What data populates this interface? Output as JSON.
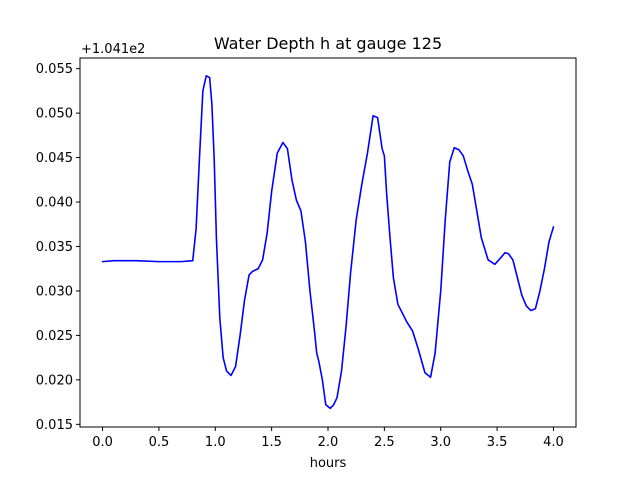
{
  "chart_data": {
    "type": "line",
    "title": "Water Depth h at gauge 125",
    "xlabel": "hours",
    "ylabel": "",
    "y_offset_label": "+1.041e2",
    "xlim": [
      -0.2,
      4.2
    ],
    "ylim": [
      0.0147,
      0.0562
    ],
    "x_ticks": [
      0.0,
      0.5,
      1.0,
      1.5,
      2.0,
      2.5,
      3.0,
      3.5,
      4.0
    ],
    "x_tick_labels": [
      "0.0",
      "0.5",
      "1.0",
      "1.5",
      "2.0",
      "2.5",
      "3.0",
      "3.5",
      "4.0"
    ],
    "y_ticks": [
      0.015,
      0.02,
      0.025,
      0.03,
      0.035,
      0.04,
      0.045,
      0.05,
      0.055
    ],
    "y_tick_labels": [
      "0.015",
      "0.020",
      "0.025",
      "0.030",
      "0.035",
      "0.040",
      "0.045",
      "0.050",
      "0.055"
    ],
    "grid": false,
    "series": [
      {
        "color": "#0000ff",
        "x": [
          0.0,
          0.1,
          0.3,
          0.5,
          0.7,
          0.8,
          0.83,
          0.86,
          0.89,
          0.92,
          0.95,
          0.97,
          0.99,
          1.01,
          1.04,
          1.07,
          1.1,
          1.14,
          1.18,
          1.22,
          1.26,
          1.3,
          1.33,
          1.38,
          1.42,
          1.46,
          1.5,
          1.55,
          1.6,
          1.64,
          1.68,
          1.72,
          1.76,
          1.8,
          1.84,
          1.88,
          1.9,
          1.92,
          1.95,
          1.98,
          2.02,
          2.05,
          2.08,
          2.12,
          2.16,
          2.2,
          2.25,
          2.3,
          2.35,
          2.4,
          2.44,
          2.48,
          2.5,
          2.52,
          2.55,
          2.58,
          2.62,
          2.66,
          2.7,
          2.75,
          2.8,
          2.86,
          2.91,
          2.95,
          3.0,
          3.04,
          3.08,
          3.12,
          3.16,
          3.2,
          3.24,
          3.28,
          3.32,
          3.36,
          3.42,
          3.48,
          3.53,
          3.57,
          3.6,
          3.64,
          3.68,
          3.72,
          3.76,
          3.8,
          3.84,
          3.88,
          3.92,
          3.96,
          4.0
        ],
        "values": [
          0.0333,
          0.0334,
          0.0334,
          0.0333,
          0.0333,
          0.0334,
          0.037,
          0.045,
          0.0525,
          0.0542,
          0.054,
          0.051,
          0.045,
          0.036,
          0.027,
          0.0225,
          0.021,
          0.0205,
          0.0215,
          0.025,
          0.029,
          0.0318,
          0.0322,
          0.0325,
          0.0335,
          0.0365,
          0.0412,
          0.0455,
          0.0467,
          0.046,
          0.0425,
          0.0402,
          0.039,
          0.0355,
          0.03,
          0.0255,
          0.023,
          0.022,
          0.02,
          0.0172,
          0.0168,
          0.0172,
          0.018,
          0.021,
          0.026,
          0.032,
          0.038,
          0.042,
          0.0455,
          0.0497,
          0.0495,
          0.046,
          0.0452,
          0.041,
          0.036,
          0.0315,
          0.0285,
          0.0275,
          0.0265,
          0.0255,
          0.0235,
          0.0208,
          0.0203,
          0.023,
          0.03,
          0.038,
          0.0445,
          0.0461,
          0.0459,
          0.0452,
          0.0435,
          0.042,
          0.039,
          0.036,
          0.0335,
          0.033,
          0.0337,
          0.0343,
          0.0342,
          0.0335,
          0.0315,
          0.0295,
          0.0283,
          0.0278,
          0.028,
          0.03,
          0.0325,
          0.0355,
          0.0372
        ]
      }
    ]
  }
}
